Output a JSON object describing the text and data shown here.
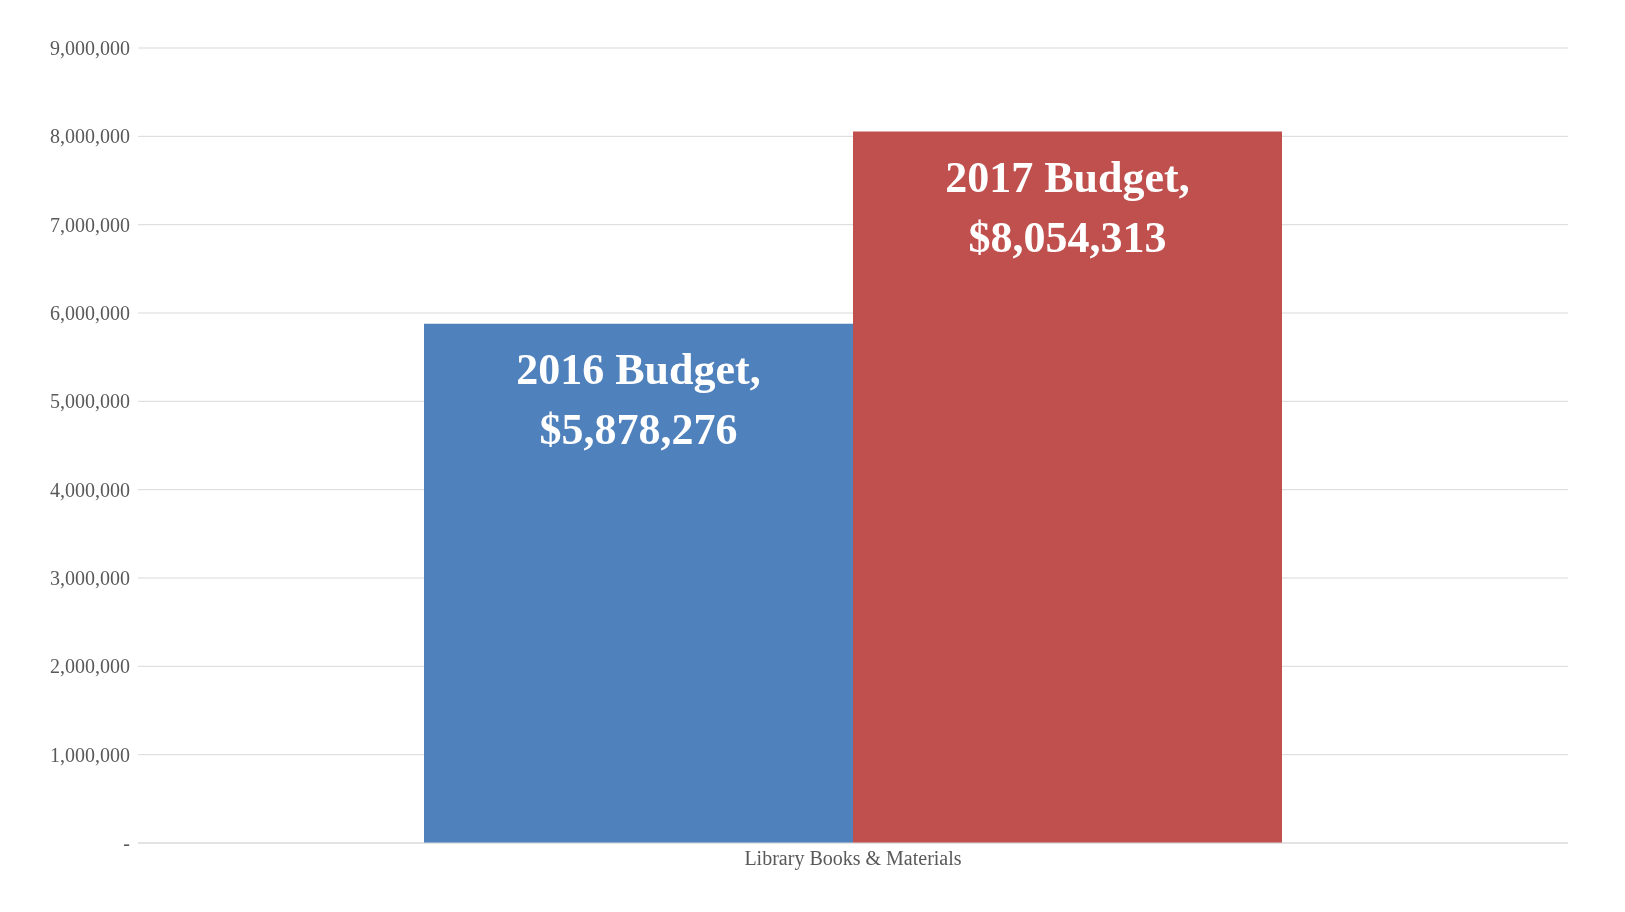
{
  "chart_data": {
    "type": "bar",
    "categories": [
      "Library Books & Materials"
    ],
    "series": [
      {
        "color": "#4f81bd",
        "values": [
          5878276
        ],
        "value_labels": [
          "2016 Budget, $5,878,276"
        ]
      },
      {
        "color": "#c0504d",
        "values": [
          8054313
        ],
        "value_labels": [
          "2017 Budget, $8,054,313"
        ]
      }
    ],
    "ylim": [
      0,
      9000000
    ],
    "yticks": [
      {
        "value": 0,
        "label": "-"
      },
      {
        "value": 1000000,
        "label": "1,000,000"
      },
      {
        "value": 2000000,
        "label": "2,000,000"
      },
      {
        "value": 3000000,
        "label": "3,000,000"
      },
      {
        "value": 4000000,
        "label": "4,000,000"
      },
      {
        "value": 5000000,
        "label": "5,000,000"
      },
      {
        "value": 6000000,
        "label": "6,000,000"
      },
      {
        "value": 7000000,
        "label": "7,000,000"
      },
      {
        "value": 8000000,
        "label": "8,000,000"
      },
      {
        "value": 9000000,
        "label": "9,000,000"
      }
    ],
    "grid": "y",
    "legend": false
  }
}
